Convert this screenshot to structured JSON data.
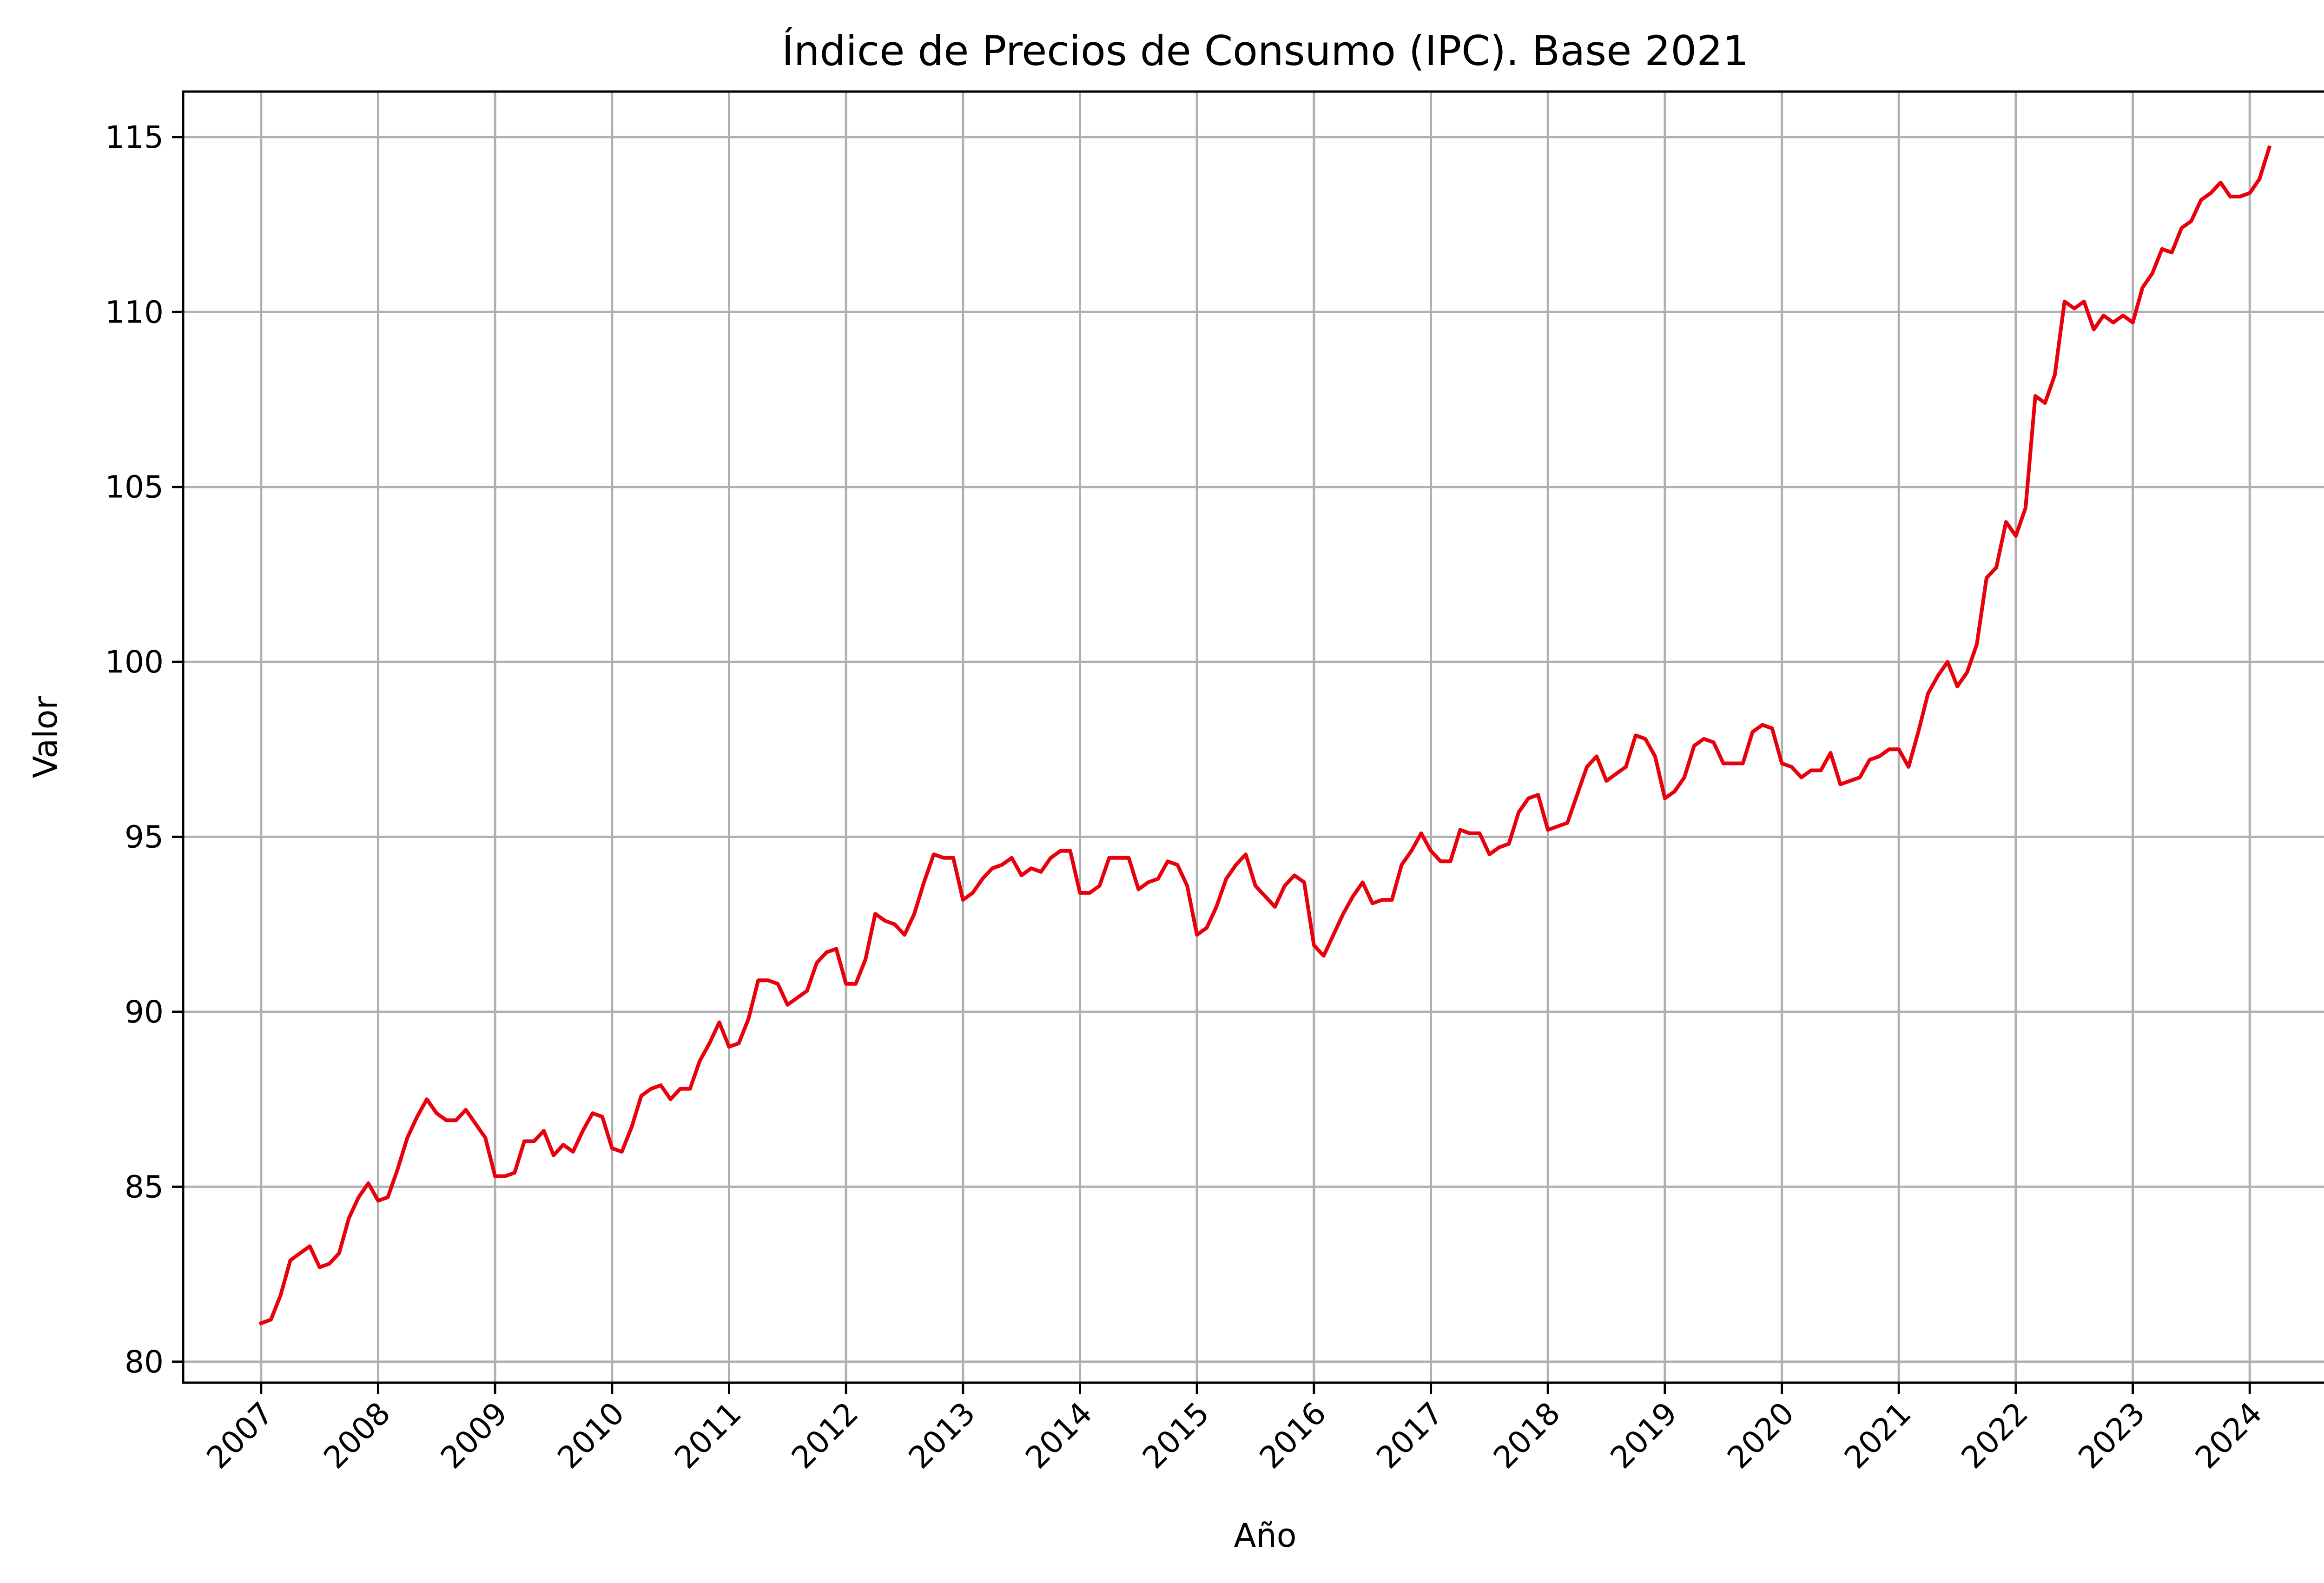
{
  "chart_data": {
    "type": "line",
    "title": "Índice de Precios de Consumo (IPC). Base 2021",
    "xlabel": "Año",
    "ylabel": "Valor",
    "x_ticks": [
      "2007",
      "2008",
      "2009",
      "2010",
      "2011",
      "2012",
      "2013",
      "2014",
      "2015",
      "2016",
      "2017",
      "2018",
      "2019",
      "2020",
      "2021",
      "2022",
      "2023",
      "2024"
    ],
    "y_ticks": [
      80,
      85,
      90,
      95,
      100,
      105,
      110,
      115
    ],
    "xlim": [
      "2006-05",
      "2024-11"
    ],
    "ylim": [
      79.4,
      116.3
    ],
    "grid": true,
    "series": [
      {
        "color": "#e8000b",
        "points": [
          [
            "2007-01",
            81.1
          ],
          [
            "2007-02",
            81.2
          ],
          [
            "2007-03",
            81.9
          ],
          [
            "2007-04",
            82.9
          ],
          [
            "2007-05",
            83.1
          ],
          [
            "2007-06",
            83.3
          ],
          [
            "2007-07",
            82.7
          ],
          [
            "2007-08",
            82.8
          ],
          [
            "2007-09",
            83.1
          ],
          [
            "2007-10",
            84.1
          ],
          [
            "2007-11",
            84.7
          ],
          [
            "2007-12",
            85.1
          ],
          [
            "2008-01",
            84.6
          ],
          [
            "2008-02",
            84.7
          ],
          [
            "2008-03",
            85.5
          ],
          [
            "2008-04",
            86.4
          ],
          [
            "2008-05",
            87.0
          ],
          [
            "2008-06",
            87.5
          ],
          [
            "2008-07",
            87.1
          ],
          [
            "2008-08",
            86.9
          ],
          [
            "2008-09",
            86.9
          ],
          [
            "2008-10",
            87.2
          ],
          [
            "2008-11",
            86.8
          ],
          [
            "2008-12",
            86.4
          ],
          [
            "2009-01",
            85.3
          ],
          [
            "2009-02",
            85.3
          ],
          [
            "2009-03",
            85.4
          ],
          [
            "2009-04",
            86.3
          ],
          [
            "2009-05",
            86.3
          ],
          [
            "2009-06",
            86.6
          ],
          [
            "2009-07",
            85.9
          ],
          [
            "2009-08",
            86.2
          ],
          [
            "2009-09",
            86.0
          ],
          [
            "2009-10",
            86.6
          ],
          [
            "2009-11",
            87.1
          ],
          [
            "2009-12",
            87.0
          ],
          [
            "2010-01",
            86.1
          ],
          [
            "2010-02",
            86.0
          ],
          [
            "2010-03",
            86.7
          ],
          [
            "2010-04",
            87.6
          ],
          [
            "2010-05",
            87.8
          ],
          [
            "2010-06",
            87.9
          ],
          [
            "2010-07",
            87.5
          ],
          [
            "2010-08",
            87.8
          ],
          [
            "2010-09",
            87.8
          ],
          [
            "2010-10",
            88.6
          ],
          [
            "2010-11",
            89.1
          ],
          [
            "2010-12",
            89.7
          ],
          [
            "2011-01",
            89.0
          ],
          [
            "2011-02",
            89.1
          ],
          [
            "2011-03",
            89.8
          ],
          [
            "2011-04",
            90.9
          ],
          [
            "2011-05",
            90.9
          ],
          [
            "2011-06",
            90.8
          ],
          [
            "2011-07",
            90.2
          ],
          [
            "2011-08",
            90.4
          ],
          [
            "2011-09",
            90.6
          ],
          [
            "2011-10",
            91.4
          ],
          [
            "2011-11",
            91.7
          ],
          [
            "2011-12",
            91.8
          ],
          [
            "2012-01",
            90.8
          ],
          [
            "2012-02",
            90.8
          ],
          [
            "2012-03",
            91.5
          ],
          [
            "2012-04",
            92.8
          ],
          [
            "2012-05",
            92.6
          ],
          [
            "2012-06",
            92.5
          ],
          [
            "2012-07",
            92.2
          ],
          [
            "2012-08",
            92.8
          ],
          [
            "2012-09",
            93.7
          ],
          [
            "2012-10",
            94.5
          ],
          [
            "2012-11",
            94.4
          ],
          [
            "2012-12",
            94.4
          ],
          [
            "2013-01",
            93.2
          ],
          [
            "2013-02",
            93.4
          ],
          [
            "2013-03",
            93.8
          ],
          [
            "2013-04",
            94.1
          ],
          [
            "2013-05",
            94.2
          ],
          [
            "2013-06",
            94.4
          ],
          [
            "2013-07",
            93.9
          ],
          [
            "2013-08",
            94.1
          ],
          [
            "2013-09",
            94.0
          ],
          [
            "2013-10",
            94.4
          ],
          [
            "2013-11",
            94.6
          ],
          [
            "2013-12",
            94.6
          ],
          [
            "2014-01",
            93.4
          ],
          [
            "2014-02",
            93.4
          ],
          [
            "2014-03",
            93.6
          ],
          [
            "2014-04",
            94.4
          ],
          [
            "2014-05",
            94.4
          ],
          [
            "2014-06",
            94.4
          ],
          [
            "2014-07",
            93.5
          ],
          [
            "2014-08",
            93.7
          ],
          [
            "2014-09",
            93.8
          ],
          [
            "2014-10",
            94.3
          ],
          [
            "2014-11",
            94.2
          ],
          [
            "2014-12",
            93.6
          ],
          [
            "2015-01",
            92.2
          ],
          [
            "2015-02",
            92.4
          ],
          [
            "2015-03",
            93.0
          ],
          [
            "2015-04",
            93.8
          ],
          [
            "2015-05",
            94.2
          ],
          [
            "2015-06",
            94.5
          ],
          [
            "2015-07",
            93.6
          ],
          [
            "2015-08",
            93.3
          ],
          [
            "2015-09",
            93.0
          ],
          [
            "2015-10",
            93.6
          ],
          [
            "2015-11",
            93.9
          ],
          [
            "2015-12",
            93.7
          ],
          [
            "2016-01",
            91.9
          ],
          [
            "2016-02",
            91.6
          ],
          [
            "2016-03",
            92.2
          ],
          [
            "2016-04",
            92.8
          ],
          [
            "2016-05",
            93.3
          ],
          [
            "2016-06",
            93.7
          ],
          [
            "2016-07",
            93.1
          ],
          [
            "2016-08",
            93.2
          ],
          [
            "2016-09",
            93.2
          ],
          [
            "2016-10",
            94.2
          ],
          [
            "2016-11",
            94.6
          ],
          [
            "2016-12",
            95.1
          ],
          [
            "2017-01",
            94.6
          ],
          [
            "2017-02",
            94.3
          ],
          [
            "2017-03",
            94.3
          ],
          [
            "2017-04",
            95.2
          ],
          [
            "2017-05",
            95.1
          ],
          [
            "2017-06",
            95.1
          ],
          [
            "2017-07",
            94.5
          ],
          [
            "2017-08",
            94.7
          ],
          [
            "2017-09",
            94.8
          ],
          [
            "2017-10",
            95.7
          ],
          [
            "2017-11",
            96.1
          ],
          [
            "2017-12",
            96.2
          ],
          [
            "2018-01",
            95.2
          ],
          [
            "2018-02",
            95.3
          ],
          [
            "2018-03",
            95.4
          ],
          [
            "2018-04",
            96.2
          ],
          [
            "2018-05",
            97.0
          ],
          [
            "2018-06",
            97.3
          ],
          [
            "2018-07",
            96.6
          ],
          [
            "2018-08",
            96.8
          ],
          [
            "2018-09",
            97.0
          ],
          [
            "2018-10",
            97.9
          ],
          [
            "2018-11",
            97.8
          ],
          [
            "2018-12",
            97.3
          ],
          [
            "2019-01",
            96.1
          ],
          [
            "2019-02",
            96.3
          ],
          [
            "2019-03",
            96.7
          ],
          [
            "2019-04",
            97.6
          ],
          [
            "2019-05",
            97.8
          ],
          [
            "2019-06",
            97.7
          ],
          [
            "2019-07",
            97.1
          ],
          [
            "2019-08",
            97.1
          ],
          [
            "2019-09",
            97.1
          ],
          [
            "2019-10",
            98.0
          ],
          [
            "2019-11",
            98.2
          ],
          [
            "2019-12",
            98.1
          ],
          [
            "2020-01",
            97.1
          ],
          [
            "2020-02",
            97.0
          ],
          [
            "2020-03",
            96.7
          ],
          [
            "2020-04",
            96.9
          ],
          [
            "2020-05",
            96.9
          ],
          [
            "2020-06",
            97.4
          ],
          [
            "2020-07",
            96.5
          ],
          [
            "2020-08",
            96.6
          ],
          [
            "2020-09",
            96.7
          ],
          [
            "2020-10",
            97.2
          ],
          [
            "2020-11",
            97.3
          ],
          [
            "2020-12",
            97.5
          ],
          [
            "2021-01",
            97.5
          ],
          [
            "2021-02",
            97.0
          ],
          [
            "2021-03",
            98.0
          ],
          [
            "2021-04",
            99.1
          ],
          [
            "2021-05",
            99.6
          ],
          [
            "2021-06",
            100.0
          ],
          [
            "2021-07",
            99.3
          ],
          [
            "2021-08",
            99.7
          ],
          [
            "2021-09",
            100.5
          ],
          [
            "2021-10",
            102.4
          ],
          [
            "2021-11",
            102.7
          ],
          [
            "2021-12",
            104.0
          ],
          [
            "2022-01",
            103.6
          ],
          [
            "2022-02",
            104.4
          ],
          [
            "2022-03",
            107.6
          ],
          [
            "2022-04",
            107.4
          ],
          [
            "2022-05",
            108.2
          ],
          [
            "2022-06",
            110.3
          ],
          [
            "2022-07",
            110.1
          ],
          [
            "2022-08",
            110.3
          ],
          [
            "2022-09",
            109.5
          ],
          [
            "2022-10",
            109.9
          ],
          [
            "2022-11",
            109.7
          ],
          [
            "2022-12",
            109.9
          ],
          [
            "2023-01",
            109.7
          ],
          [
            "2023-02",
            110.7
          ],
          [
            "2023-03",
            111.1
          ],
          [
            "2023-04",
            111.8
          ],
          [
            "2023-05",
            111.7
          ],
          [
            "2023-06",
            112.4
          ],
          [
            "2023-07",
            112.6
          ],
          [
            "2023-08",
            113.2
          ],
          [
            "2023-09",
            113.4
          ],
          [
            "2023-10",
            113.7
          ],
          [
            "2023-11",
            113.3
          ],
          [
            "2023-12",
            113.3
          ],
          [
            "2024-01",
            113.4
          ],
          [
            "2024-02",
            113.8
          ],
          [
            "2024-03",
            114.7
          ]
        ]
      }
    ]
  }
}
